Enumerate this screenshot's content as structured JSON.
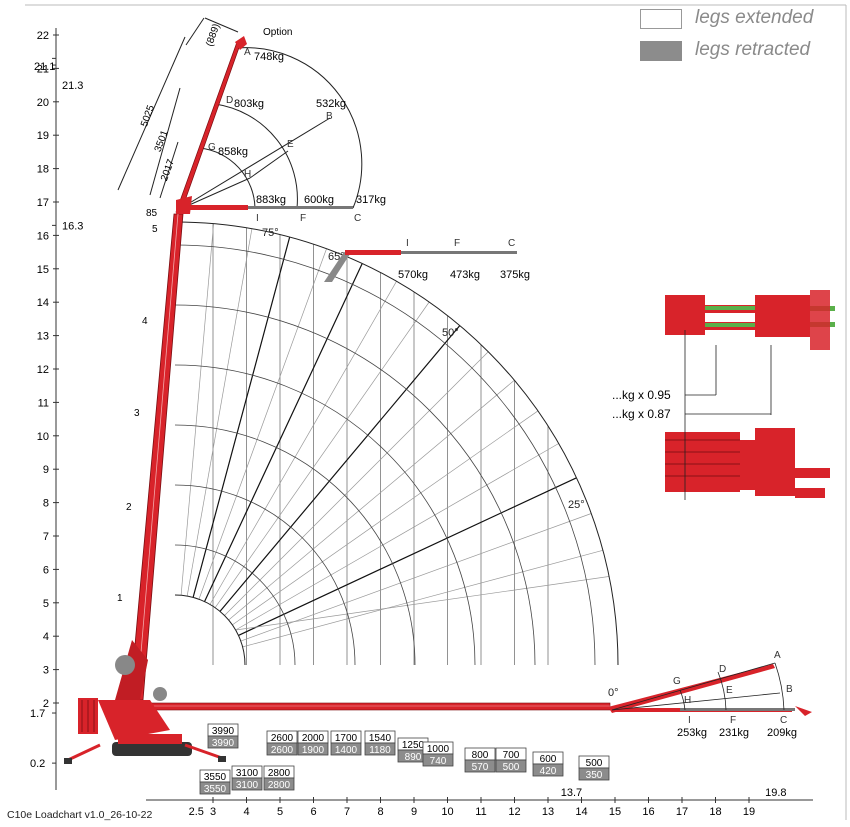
{
  "legend": [
    {
      "label": "legs extended",
      "color": "#ffffff"
    },
    {
      "label": "legs retracted",
      "color": "#8c8c8c"
    }
  ],
  "colors": {
    "boom": "#d8232a",
    "grid": "#999999",
    "arc": "#222222",
    "retracted": "#8c8c8c"
  },
  "footer": "C10e Loadchart v1.0_26-10-22",
  "option_label": "Option",
  "y_ticks": [
    "2",
    "3",
    "4",
    "5",
    "6",
    "7",
    "8",
    "9",
    "10",
    "11",
    "12",
    "13",
    "14",
    "15",
    "16",
    "17",
    "18",
    "19",
    "20",
    "21",
    "22"
  ],
  "x_ticks": [
    "3",
    "4",
    "5",
    "6",
    "7",
    "8",
    "9",
    "10",
    "11",
    "12",
    "13",
    "14",
    "15",
    "16",
    "17",
    "18",
    "19"
  ],
  "special_y": [
    {
      "label": "21.1",
      "y": 21.1
    },
    {
      "label": "21.3",
      "y": 21.3
    },
    {
      "label": "16.3",
      "y": 16.3
    },
    {
      "label": "1.7",
      "y": 1.7
    },
    {
      "label": "0.2",
      "y": 0.2
    }
  ],
  "special_x": [
    {
      "label": "2.5",
      "x": 2.5
    },
    {
      "label": "13.7",
      "x": 13.7
    },
    {
      "label": "19.8",
      "x": 19.8
    }
  ],
  "angles": [
    "75°",
    "65°",
    "50°",
    "25°",
    "0°"
  ],
  "boom_sections": [
    "1",
    "2",
    "3",
    "4",
    "5"
  ],
  "jib_dims": [
    "(889)",
    "5025",
    "3501",
    "2017",
    "85"
  ],
  "jib_top": [
    {
      "point": "A",
      "load": "748kg"
    },
    {
      "point": "D",
      "load": "803kg"
    },
    {
      "point": "G",
      "load": "858kg"
    },
    {
      "point": "B",
      "load": "532kg"
    },
    {
      "point": "E",
      "load": ""
    },
    {
      "point": "H",
      "load": ""
    },
    {
      "point": "I",
      "load": "883kg"
    },
    {
      "point": "F",
      "load": "600kg"
    },
    {
      "point": "C",
      "load": "317kg"
    }
  ],
  "jib_65": [
    {
      "point": "I",
      "load": "570kg"
    },
    {
      "point": "F",
      "load": "473kg"
    },
    {
      "point": "C",
      "load": "375kg"
    }
  ],
  "jib_0": [
    {
      "point": "A",
      "load": ""
    },
    {
      "point": "B",
      "load": ""
    },
    {
      "point": "C",
      "load": "209kg"
    },
    {
      "point": "D",
      "load": ""
    },
    {
      "point": "E",
      "load": ""
    },
    {
      "point": "F",
      "load": "231kg"
    },
    {
      "point": "G",
      "load": ""
    },
    {
      "point": "H",
      "load": ""
    },
    {
      "point": "I",
      "load": "253kg"
    }
  ],
  "factors": [
    "...kg x 0.95",
    "...kg x 0.87"
  ],
  "load_boxes": [
    {
      "ext": "3990",
      "ret": "3990"
    },
    {
      "ext": "3550",
      "ret": "3550"
    },
    {
      "ext": "3100",
      "ret": "3100"
    },
    {
      "ext": "2800",
      "ret": "2800"
    },
    {
      "ext": "2600",
      "ret": "2600"
    },
    {
      "ext": "2000",
      "ret": "1900"
    },
    {
      "ext": "1700",
      "ret": "1400"
    },
    {
      "ext": "1540",
      "ret": "1180"
    },
    {
      "ext": "1250",
      "ret": "890"
    },
    {
      "ext": "1000",
      "ret": "740"
    },
    {
      "ext": "800",
      "ret": "570"
    },
    {
      "ext": "700",
      "ret": "500"
    },
    {
      "ext": "600",
      "ret": "420"
    },
    {
      "ext": "500",
      "ret": "350"
    }
  ]
}
